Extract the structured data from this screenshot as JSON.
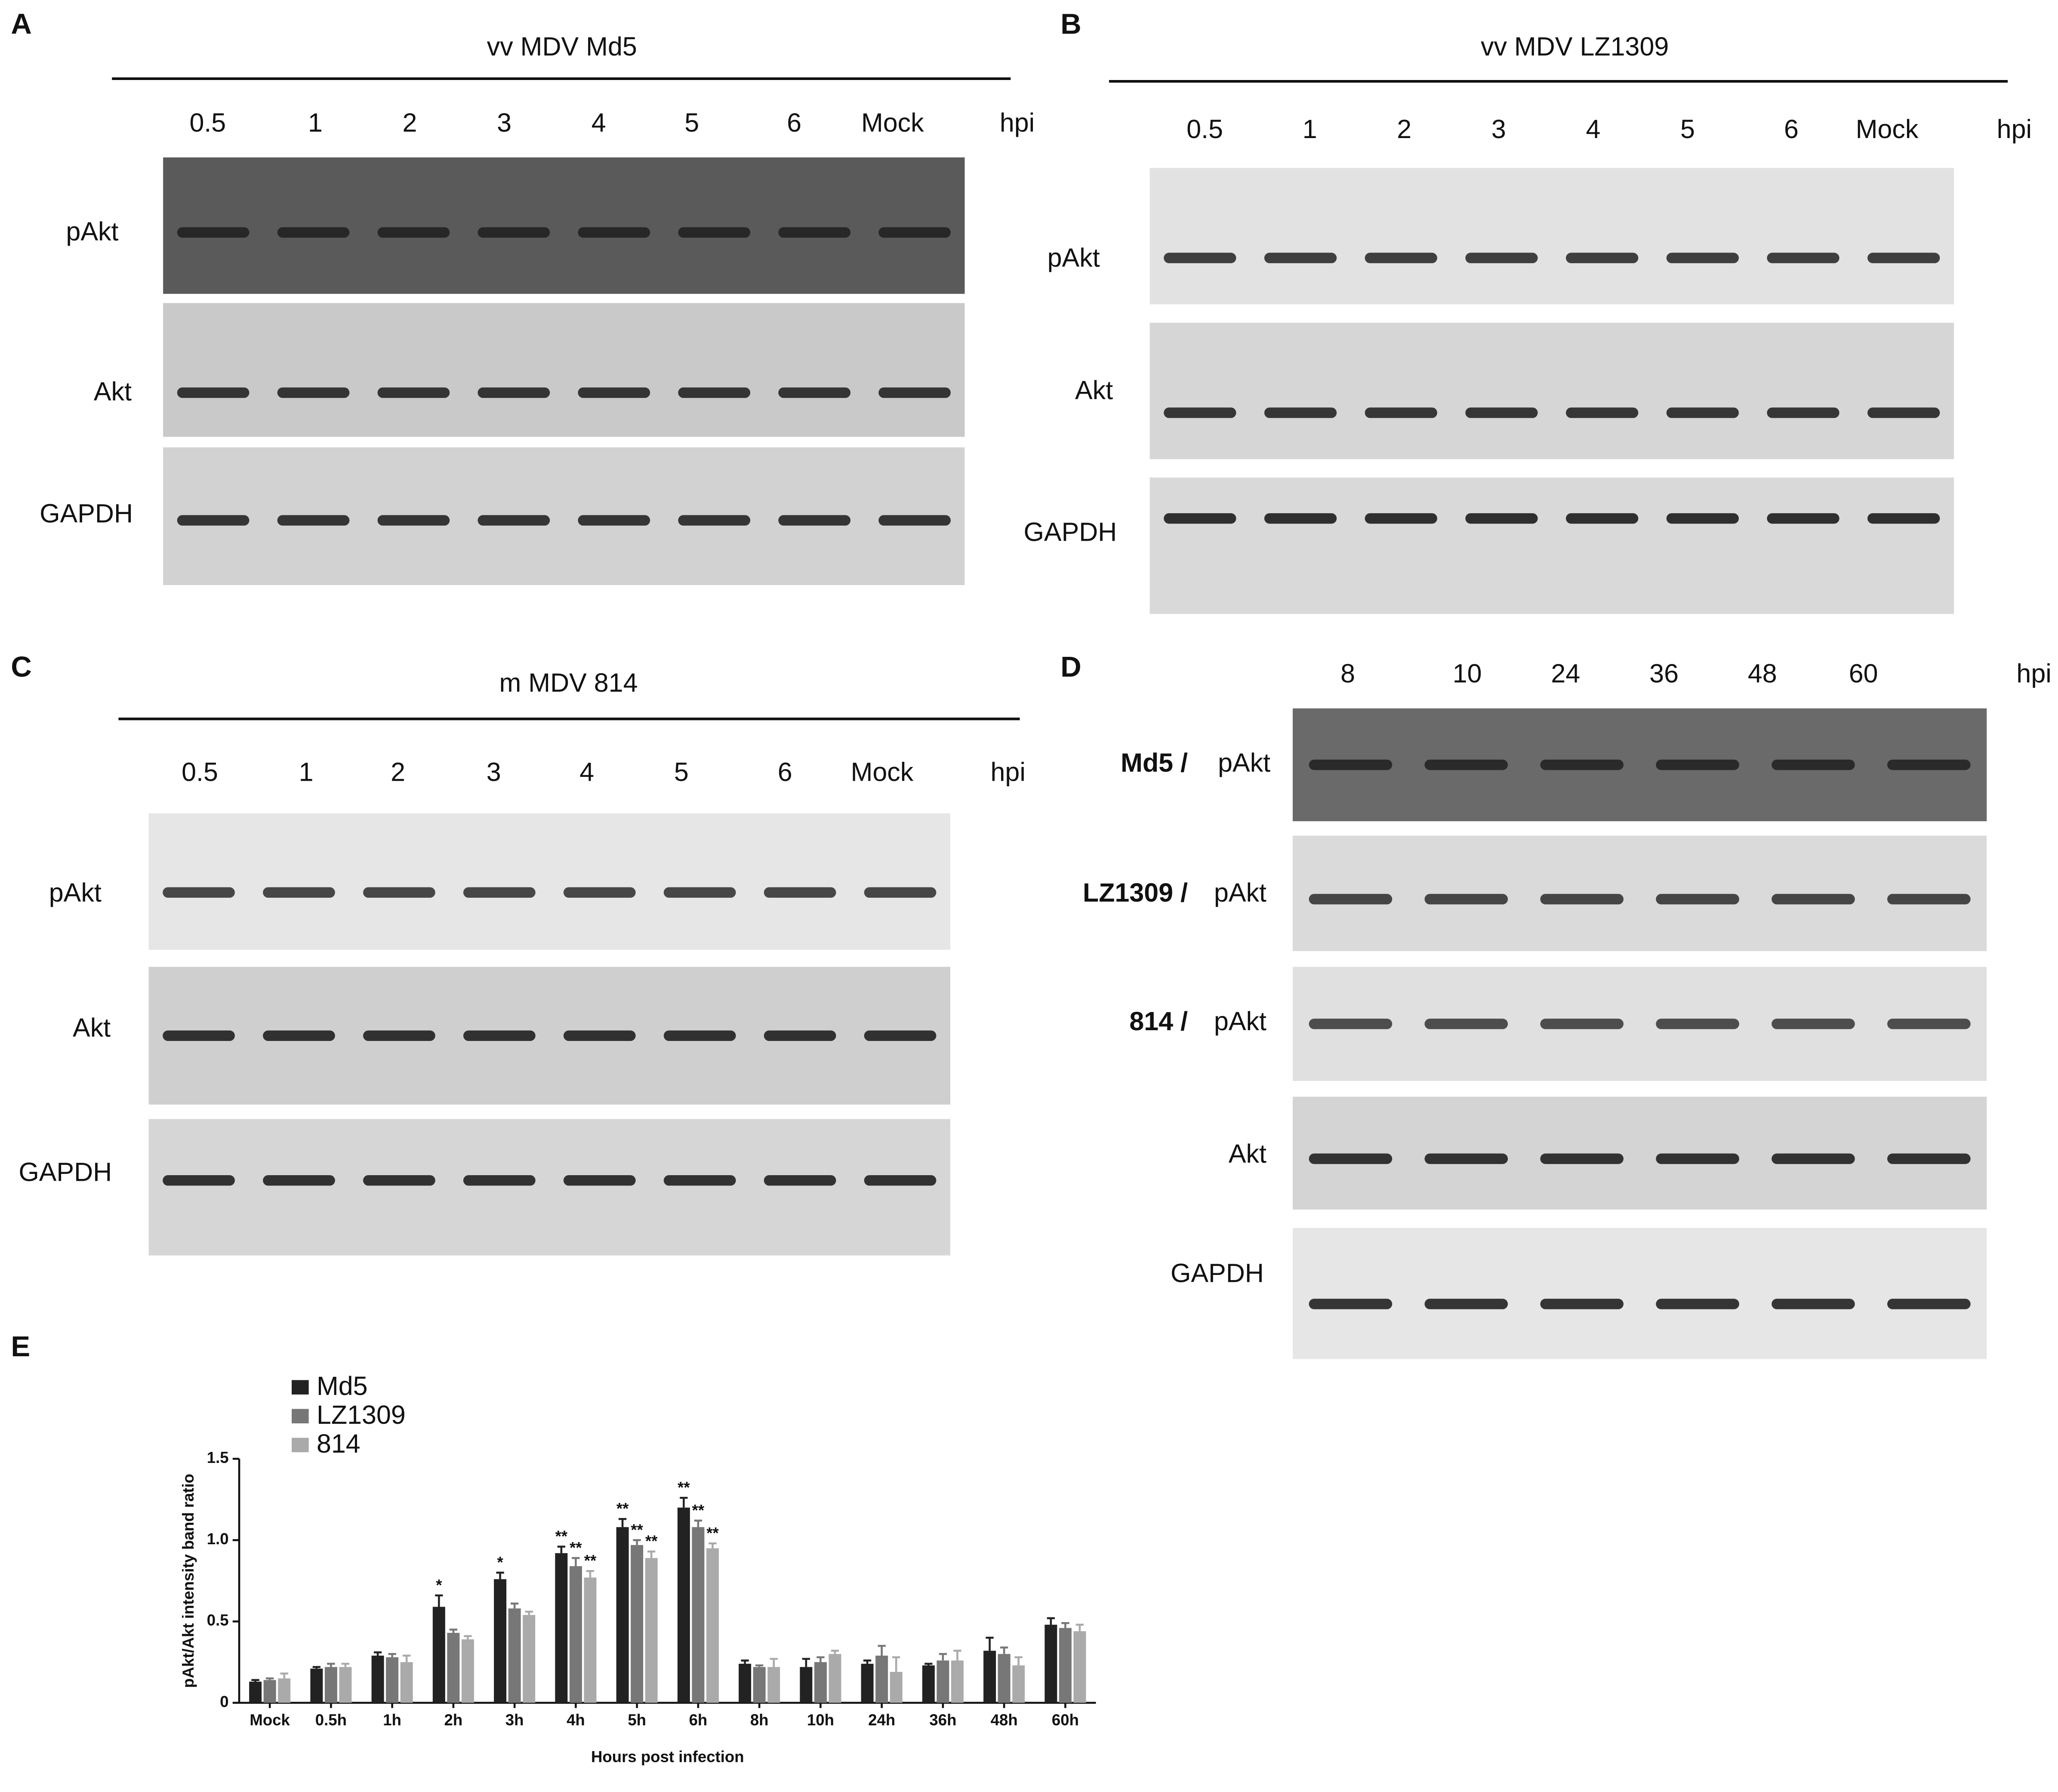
{
  "panels": [
    {
      "label": "A",
      "title": "vv MDV Md5",
      "lanes": [
        "0.5",
        "1",
        "2",
        "3",
        "4",
        "5",
        "6",
        "Mock"
      ],
      "unit": "hpi",
      "rows": [
        {
          "label": "pAkt"
        },
        {
          "label": "Akt"
        },
        {
          "label": "GAPDH"
        }
      ]
    },
    {
      "label": "B",
      "title": "vv MDV  LZ1309",
      "lanes": [
        "0.5",
        "1",
        "2",
        "3",
        "4",
        "5",
        "6",
        "Mock"
      ],
      "unit": "hpi",
      "rows": [
        {
          "label": "pAkt"
        },
        {
          "label": "Akt"
        },
        {
          "label": "GAPDH"
        }
      ]
    },
    {
      "label": "C",
      "title": "m MDV  814",
      "lanes": [
        "0.5",
        "1",
        "2",
        "3",
        "4",
        "5",
        "6",
        "Mock"
      ],
      "unit": "hpi",
      "rows": [
        {
          "label": "pAkt"
        },
        {
          "label": "Akt"
        },
        {
          "label": "GAPDH"
        }
      ]
    },
    {
      "label": "D",
      "lanes": [
        "8",
        "10",
        "24",
        "36",
        "48",
        "60"
      ],
      "unit": "hpi",
      "rows": [
        {
          "strain": "Md5 /",
          "label": "pAkt"
        },
        {
          "strain": "LZ1309 /",
          "label": "pAkt"
        },
        {
          "strain": "814 /",
          "label": "pAkt"
        },
        {
          "label": "Akt"
        },
        {
          "label": "GAPDH"
        }
      ]
    }
  ],
  "chart_data": {
    "type": "bar",
    "panel_label": "E",
    "xlabel": "Hours post infection",
    "ylabel": "pAkt/Akt intensity band ratio",
    "categories": [
      "Mock",
      "0.5h",
      "1h",
      "2h",
      "3h",
      "4h",
      "5h",
      "6h",
      "8h",
      "10h",
      "24h",
      "36h",
      "48h",
      "60h"
    ],
    "series": [
      {
        "name": "Md5",
        "color": "#222222",
        "values": [
          0.13,
          0.21,
          0.29,
          0.59,
          0.76,
          0.92,
          1.08,
          1.2,
          0.24,
          0.22,
          0.24,
          0.23,
          0.32,
          0.48
        ],
        "errors": [
          0.01,
          0.01,
          0.02,
          0.07,
          0.04,
          0.04,
          0.05,
          0.06,
          0.02,
          0.05,
          0.02,
          0.01,
          0.08,
          0.04
        ],
        "significance": [
          null,
          null,
          null,
          "*",
          "*",
          "**",
          "**",
          "**",
          null,
          null,
          null,
          null,
          null,
          null
        ]
      },
      {
        "name": "LZ1309",
        "color": "#777777",
        "values": [
          0.14,
          0.22,
          0.28,
          0.43,
          0.58,
          0.84,
          0.97,
          1.08,
          0.22,
          0.25,
          0.29,
          0.26,
          0.3,
          0.46
        ],
        "errors": [
          0.01,
          0.02,
          0.02,
          0.02,
          0.03,
          0.05,
          0.03,
          0.04,
          0.01,
          0.03,
          0.06,
          0.04,
          0.04,
          0.03
        ],
        "significance": [
          null,
          null,
          null,
          null,
          null,
          "**",
          "**",
          "**",
          null,
          null,
          null,
          null,
          null,
          null
        ]
      },
      {
        "name": "814",
        "color": "#aaaaaa",
        "values": [
          0.15,
          0.22,
          0.25,
          0.39,
          0.54,
          0.77,
          0.89,
          0.95,
          0.22,
          0.3,
          0.19,
          0.26,
          0.23,
          0.44
        ],
        "errors": [
          0.03,
          0.02,
          0.04,
          0.02,
          0.02,
          0.04,
          0.04,
          0.03,
          0.05,
          0.02,
          0.09,
          0.06,
          0.05,
          0.04
        ],
        "significance": [
          null,
          null,
          null,
          null,
          null,
          "**",
          "**",
          "**",
          null,
          null,
          null,
          null,
          null,
          null
        ]
      }
    ],
    "ylim": [
      0,
      1.5
    ],
    "yticks": [
      0,
      0.5,
      {
        "value": 1,
        "label": "1.0"
      },
      1.5
    ]
  }
}
